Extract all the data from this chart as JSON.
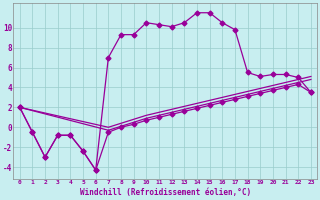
{
  "xlabel": "Windchill (Refroidissement éolien,°C)",
  "bg_color": "#c8eef0",
  "line_color": "#990099",
  "xlim": [
    -0.5,
    23.5
  ],
  "ylim": [
    -5.2,
    12.5
  ],
  "xticks": [
    0,
    1,
    2,
    3,
    4,
    5,
    6,
    7,
    8,
    9,
    10,
    11,
    12,
    13,
    14,
    15,
    16,
    17,
    18,
    19,
    20,
    21,
    22,
    23
  ],
  "yticks": [
    -4,
    -2,
    0,
    2,
    4,
    6,
    8,
    10
  ],
  "grid_color": "#99cccc",
  "curve1_x": [
    0,
    1,
    2,
    3,
    4,
    5,
    6,
    7,
    8,
    9,
    10,
    11,
    12,
    13,
    14,
    15,
    16,
    17,
    18,
    19,
    20,
    21,
    22,
    23
  ],
  "curve1_y": [
    2.0,
    -0.5,
    -3.0,
    -0.8,
    -0.8,
    -2.4,
    -4.3,
    7.0,
    9.3,
    9.3,
    10.5,
    10.3,
    10.1,
    10.5,
    11.5,
    11.5,
    10.5,
    9.8,
    5.5,
    5.1,
    5.3,
    5.3,
    5.0,
    3.5
  ],
  "curve2_x": [
    0,
    1,
    2,
    3,
    4,
    5,
    6,
    7,
    8,
    9,
    10,
    11,
    12,
    13,
    14,
    15,
    16,
    17,
    18,
    19,
    20,
    21,
    22,
    23
  ],
  "curve2_y": [
    2.0,
    -0.5,
    -3.0,
    -0.8,
    -0.8,
    -2.4,
    -4.3,
    -0.5,
    0.0,
    0.3,
    0.7,
    1.0,
    1.3,
    1.6,
    1.9,
    2.2,
    2.5,
    2.8,
    3.1,
    3.4,
    3.7,
    4.0,
    4.3,
    3.5
  ],
  "curve3_x": [
    0,
    7,
    8,
    9,
    10,
    11,
    12,
    13,
    14,
    15,
    16,
    17,
    18,
    19,
    20,
    21,
    22,
    23
  ],
  "curve3_y": [
    2.0,
    -0.3,
    0.1,
    0.5,
    0.9,
    1.2,
    1.5,
    1.8,
    2.1,
    2.4,
    2.7,
    3.0,
    3.3,
    3.6,
    3.9,
    4.2,
    4.5,
    4.8
  ],
  "curve4_x": [
    0,
    7,
    8,
    9,
    10,
    11,
    12,
    13,
    14,
    15,
    16,
    17,
    18,
    19,
    20,
    21,
    22,
    23
  ],
  "curve4_y": [
    2.0,
    -0.0,
    0.4,
    0.8,
    1.2,
    1.5,
    1.8,
    2.1,
    2.4,
    2.7,
    3.0,
    3.3,
    3.6,
    3.9,
    4.2,
    4.5,
    4.8,
    5.1
  ]
}
